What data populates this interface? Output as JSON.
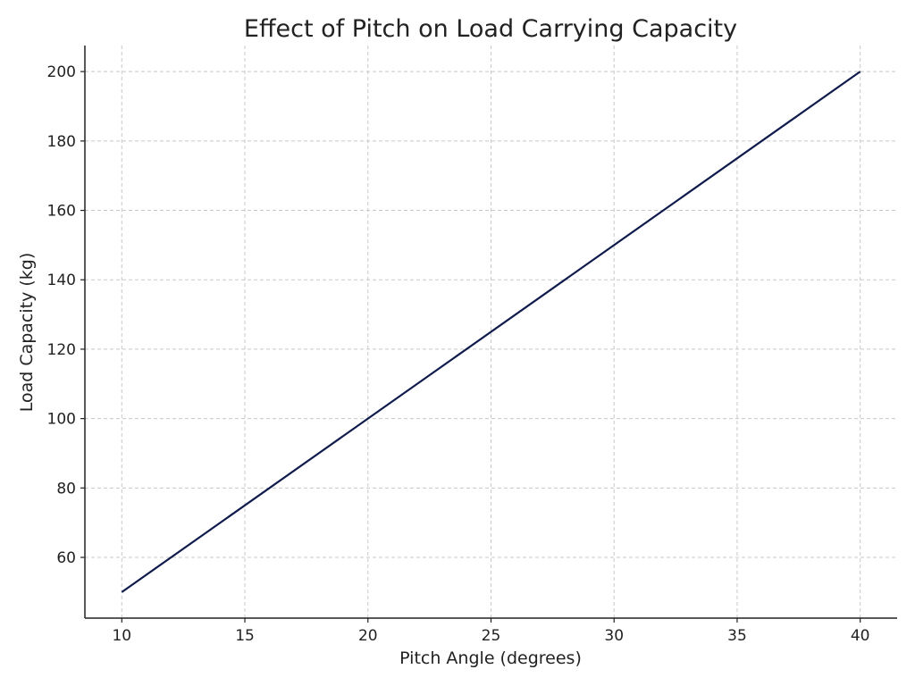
{
  "chart_data": {
    "type": "line",
    "title": "Effect of Pitch on Load Carrying Capacity",
    "xlabel": "Pitch Angle (degrees)",
    "ylabel": "Load Capacity (kg)",
    "xlim": [
      8.5,
      41.5
    ],
    "ylim": [
      42.5,
      207.5
    ],
    "xticks": [
      10,
      15,
      20,
      25,
      30,
      35,
      40
    ],
    "yticks": [
      60,
      80,
      100,
      120,
      140,
      160,
      180,
      200
    ],
    "grid": true,
    "series": [
      {
        "color": "#0f1b4c",
        "x": [
          10,
          40
        ],
        "y": [
          50,
          200
        ]
      }
    ]
  }
}
